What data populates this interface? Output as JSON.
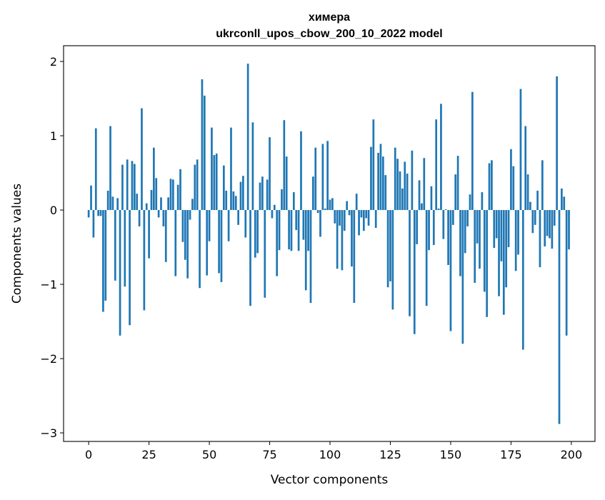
{
  "chart_data": {
    "type": "bar",
    "title": [
      "химера",
      "ukrconll_upos_cbow_200_10_2022 model"
    ],
    "xlabel": "Vector components",
    "ylabel": "Components values",
    "xlim": [
      -10.4,
      209.8
    ],
    "ylim": [
      -3.115,
      2.212
    ],
    "xticks": [
      0,
      25,
      50,
      75,
      100,
      125,
      150,
      175,
      200
    ],
    "xtick_labels": [
      "0",
      "25",
      "50",
      "75",
      "100",
      "125",
      "150",
      "175",
      "200"
    ],
    "yticks": [
      2,
      1,
      0,
      -1,
      -2,
      -3
    ],
    "ytick_labels": [
      "2",
      "1",
      "0",
      "−1",
      "−2",
      "−3"
    ],
    "grid": false,
    "color": "#1f77b4",
    "values": [
      -0.1,
      0.33,
      -0.37,
      1.1,
      -0.08,
      -0.08,
      -1.37,
      -1.22,
      0.26,
      1.13,
      0.18,
      -0.95,
      0.16,
      -1.69,
      0.61,
      -1.03,
      0.68,
      -1.55,
      0.66,
      0.62,
      0.22,
      -0.22,
      1.37,
      -1.35,
      0.09,
      -0.65,
      0.27,
      0.84,
      0.43,
      -0.1,
      0.17,
      -0.22,
      -0.7,
      0.17,
      0.42,
      0.41,
      -0.89,
      0.34,
      0.55,
      -0.43,
      -0.67,
      -0.92,
      -0.13,
      0.15,
      0.61,
      0.68,
      -1.05,
      1.76,
      1.54,
      -0.88,
      -0.42,
      1.11,
      0.74,
      0.76,
      -0.85,
      -0.97,
      0.6,
      0.26,
      -0.42,
      1.11,
      0.25,
      0.19,
      -0.2,
      0.38,
      0.46,
      -0.37,
      1.97,
      -1.29,
      1.18,
      -0.64,
      -0.58,
      0.37,
      0.45,
      -1.18,
      0.41,
      0.98,
      -0.11,
      0.07,
      -0.89,
      -0.54,
      0.28,
      1.21,
      0.72,
      -0.53,
      -0.55,
      0.24,
      -0.27,
      -0.55,
      1.06,
      -0.4,
      -1.08,
      -0.55,
      -1.25,
      0.45,
      0.84,
      -0.04,
      -0.36,
      0.89,
      0.02,
      0.93,
      0.14,
      0.16,
      -0.18,
      -0.79,
      -0.21,
      -0.81,
      -0.28,
      0.12,
      -0.07,
      -0.76,
      -1.25,
      0.22,
      -0.34,
      -0.1,
      -0.28,
      -0.11,
      -0.21,
      0.85,
      1.22,
      -0.24,
      0.77,
      0.89,
      0.72,
      0.47,
      -1.04,
      -0.96,
      -1.34,
      0.84,
      0.69,
      0.52,
      0.29,
      0.65,
      0.49,
      -1.43,
      0.8,
      -1.67,
      -0.46,
      0.4,
      0.09,
      0.7,
      -1.29,
      -0.54,
      0.32,
      -0.47,
      1.22,
      0.02,
      1.43,
      -0.39,
      0.01,
      -0.74,
      -1.63,
      -0.2,
      0.48,
      0.73,
      -0.89,
      -1.8,
      -0.58,
      -0.22,
      0.21,
      1.59,
      -0.98,
      -0.45,
      -0.79,
      0.24,
      -1.1,
      -1.44,
      0.63,
      0.67,
      -0.51,
      -0.38,
      -1.16,
      -0.69,
      -1.41,
      -1.04,
      -0.5,
      0.82,
      0.59,
      -0.82,
      -0.6,
      1.63,
      -1.88,
      1.13,
      0.48,
      0.11,
      -0.31,
      -0.2,
      0.26,
      -0.77,
      0.67,
      -0.49,
      -0.35,
      -0.38,
      -0.52,
      -0.21,
      1.8,
      -2.88,
      0.29,
      0.18,
      -1.69,
      -0.53
    ]
  }
}
